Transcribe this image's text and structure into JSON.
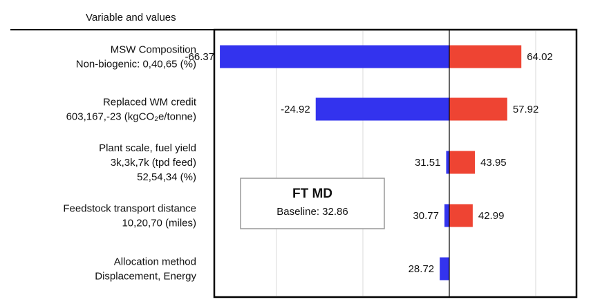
{
  "chart_data": {
    "type": "bar",
    "orientation": "horizontal",
    "style": "tornado",
    "header": "Variable and values",
    "baseline": 32.86,
    "annotation": {
      "title": "FT MD",
      "subtitle": "Baseline: 32.86"
    },
    "colors": {
      "low": "#3333ee",
      "high": "#ee4433",
      "frame": "#000000",
      "grid": "#d9d9d9"
    },
    "grid": true,
    "categories": [
      {
        "lines": [
          "MSW Composition",
          "Non-biogenic:  0,40,65  (%)"
        ],
        "low": -66.37,
        "high": 64.02,
        "low_label": "-66.37",
        "high_label": "64.02"
      },
      {
        "lines": [
          "Replaced WM credit",
          "603,167,-23  (kgCO₂e/tonne)"
        ],
        "low": -24.92,
        "high": 57.92,
        "low_label": "-24.92",
        "high_label": "57.92"
      },
      {
        "lines": [
          "Plant scale, fuel yield",
          "3k,3k,7k  (tpd feed)",
          "52,54,34  (%)"
        ],
        "low": 31.51,
        "high": 43.95,
        "low_label": "31.51",
        "high_label": "43.95"
      },
      {
        "lines": [
          "Feedstock transport distance",
          "10,20,70  (miles)"
        ],
        "low": 30.77,
        "high": 42.99,
        "low_label": "30.77",
        "high_label": "42.99"
      },
      {
        "lines": [
          "Allocation method",
          "Displacement, Energy"
        ],
        "low": 28.72,
        "high": 32.86,
        "low_label": "28.72",
        "high_label": ""
      }
    ]
  }
}
